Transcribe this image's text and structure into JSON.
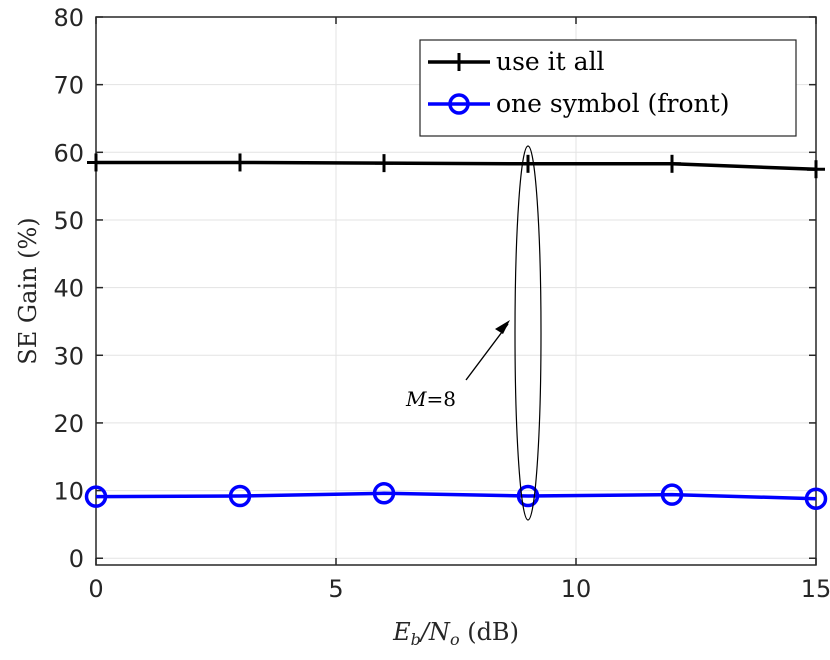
{
  "chart_data": {
    "type": "line",
    "xlabel": {
      "prefix": "E",
      "sub1": "b",
      "mid": "/N",
      "sub2": "o",
      "suffix": " (dB)"
    },
    "ylabel": "SE Gain (%)",
    "xlim": [
      0,
      15
    ],
    "ylim": [
      -1,
      80
    ],
    "xticks": [
      0,
      5,
      10,
      15
    ],
    "yticks": [
      0,
      10,
      20,
      30,
      40,
      50,
      60,
      70,
      80
    ],
    "grid": true,
    "legend_position": "top-right",
    "series": [
      {
        "name": "use it all",
        "color": "#000000",
        "marker": "plus",
        "x": [
          0,
          3,
          6,
          9,
          12,
          15
        ],
        "y": [
          58.5,
          58.5,
          58.4,
          58.3,
          58.3,
          57.5
        ]
      },
      {
        "name": "one symbol (front)",
        "color": "#0000ff",
        "marker": "circle",
        "x": [
          0,
          3,
          6,
          9,
          12,
          15
        ],
        "y": [
          9.1,
          9.2,
          9.6,
          9.2,
          9.4,
          8.8
        ]
      }
    ],
    "annotations": [
      {
        "type": "ellipse",
        "label_italic": "M",
        "label_rest": "=8"
      }
    ]
  }
}
